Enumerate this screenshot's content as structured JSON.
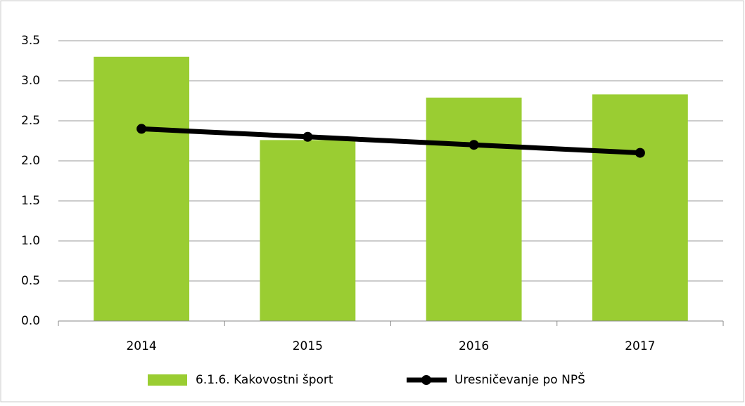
{
  "chart_data": {
    "type": "bar",
    "categories": [
      "2014",
      "2015",
      "2016",
      "2017"
    ],
    "series": [
      {
        "name": "6.1.6. Kakovostni šport",
        "type": "bar",
        "color": "#9acd32",
        "values": [
          3.3,
          2.26,
          2.79,
          2.83
        ]
      },
      {
        "name": "Uresničevanje po NPŠ",
        "type": "line",
        "color": "#000000",
        "values": [
          2.4,
          2.3,
          2.2,
          2.1
        ]
      }
    ],
    "ylim": [
      0,
      3.5
    ],
    "yticks": [
      {
        "value": 0,
        "label": "0.0"
      },
      0.5,
      {
        "value": 1,
        "label": "1.0"
      },
      1.5,
      {
        "value": 2,
        "label": "2.0"
      },
      2.5,
      {
        "value": 3,
        "label": "3.0"
      },
      3.5
    ],
    "grid": true,
    "legend": "bottom"
  }
}
